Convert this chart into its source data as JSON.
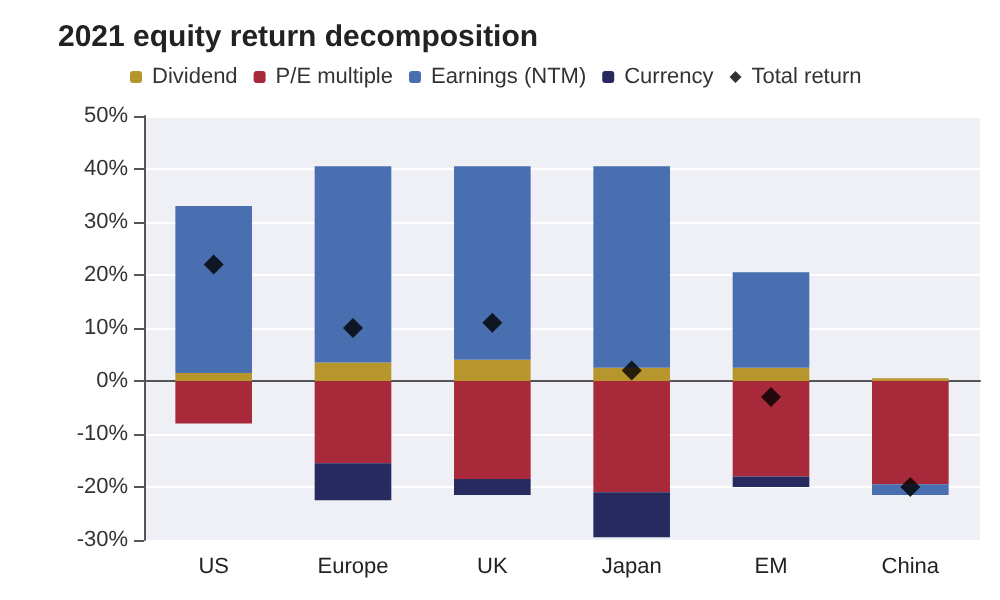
{
  "chart_data": {
    "type": "bar",
    "title": "2021 equity return decomposition",
    "categories": [
      "US",
      "Europe",
      "UK",
      "Japan",
      "EM",
      "China"
    ],
    "stacked": true,
    "series": [
      {
        "name": "Dividend",
        "color": "#b8962e",
        "values": [
          1.5,
          3.5,
          4,
          2.5,
          2.5,
          0.5
        ]
      },
      {
        "name": "P/E multiple",
        "color": "#a82a3a",
        "values": [
          -8,
          -15.5,
          -18.5,
          -21,
          -18,
          -19.5
        ]
      },
      {
        "name": "Earnings (NTM)",
        "color": "#4a6fb0",
        "values": [
          31.5,
          37,
          36.5,
          38,
          18,
          -2
        ]
      },
      {
        "name": "Currency",
        "color": "#262a5e",
        "values": [
          0,
          -7,
          -3,
          -8.5,
          -2,
          0
        ]
      },
      {
        "name": "Total return",
        "type": "scatter",
        "color": "#000000",
        "marker": "diamond",
        "values": [
          22,
          10,
          11,
          2,
          -3,
          -20
        ]
      }
    ],
    "ylim": [
      -30,
      50
    ],
    "yticks": [
      {
        "value": -30,
        "label": "-30%"
      },
      {
        "value": -20,
        "label": "-20%"
      },
      {
        "value": -10,
        "label": "-10%"
      },
      {
        "value": 0,
        "label": "0%"
      },
      {
        "value": 10,
        "label": "10%"
      },
      {
        "value": 20,
        "label": "20%"
      },
      {
        "value": 30,
        "label": "30%"
      },
      {
        "value": 40,
        "label": "40%"
      },
      {
        "value": 50,
        "label": "50%"
      }
    ],
    "grid": "y",
    "legend": "top"
  }
}
